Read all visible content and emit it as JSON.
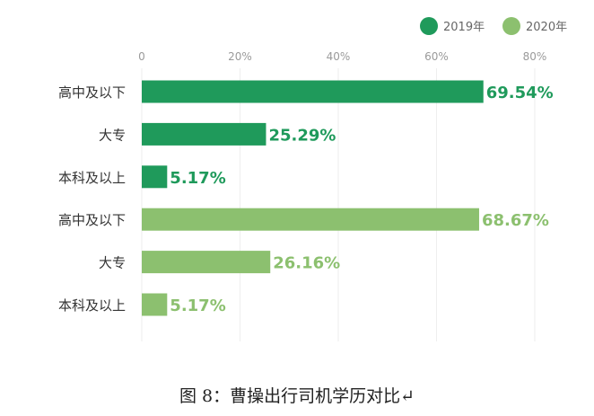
{
  "chart_data": {
    "type": "bar",
    "orientation": "horizontal",
    "xlim": [
      0,
      80
    ],
    "x_ticks": [
      "0",
      "20%",
      "40%",
      "60%",
      "80%"
    ],
    "grid": true,
    "legend_position": "top-right",
    "series": [
      {
        "name": "2019年",
        "color": "#1f9a5b",
        "categories": [
          "高中及以下",
          "大专",
          "本科及以上"
        ],
        "values": [
          69.54,
          25.29,
          5.17
        ],
        "labels": [
          "69.54%",
          "25.29%",
          "5.17%"
        ]
      },
      {
        "name": "2020年",
        "color": "#8cc06f",
        "categories": [
          "高中及以下",
          "大专",
          "本科及以上"
        ],
        "values": [
          68.67,
          26.16,
          5.17
        ],
        "labels": [
          "68.67%",
          "26.16%",
          "5.17%"
        ]
      }
    ]
  },
  "caption": "图 8：曹操出行司机学历对比↵"
}
